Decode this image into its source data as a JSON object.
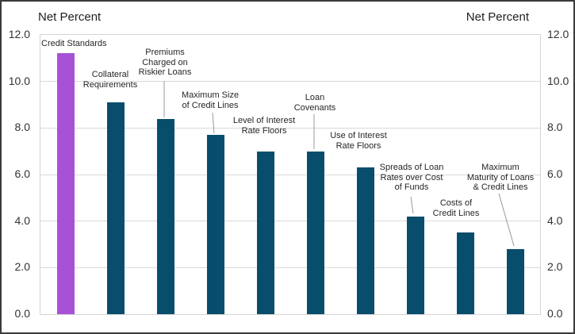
{
  "header": {
    "left_title": "Net Percent",
    "right_title": "Net Percent"
  },
  "chart_data": {
    "type": "bar",
    "title": "",
    "ylabel_left": "Net Percent",
    "ylabel_right": "Net Percent",
    "ylim": [
      0,
      12
    ],
    "ytick_step": 2,
    "ytick_labels": [
      "12.0",
      "10.0",
      "8.0",
      "6.0",
      "4.0",
      "2.0",
      "0.0"
    ],
    "grid": true,
    "legend": "none",
    "categories": [
      "Credit Standards",
      "Collateral Requirements",
      "Premiums Charged on Riskier Loans",
      "Maximum Size of Credit Lines",
      "Level of Interest Rate Floors",
      "Loan Covenants",
      "Use of Interest Rate Floors",
      "Spreads of Loan Rates over Cost of Funds",
      "Costs of Credit Lines",
      "Maximum Maturity of Loans & Credit Lines"
    ],
    "values": [
      11.2,
      9.1,
      8.4,
      7.7,
      7.0,
      7.0,
      6.3,
      4.2,
      3.5,
      2.8
    ],
    "highlight_index": 0,
    "colors": {
      "highlight_bar": "#A651D6",
      "default_bar": "#094D6C",
      "gridline": "#D9D9D9",
      "axis_text": "#333333",
      "title_text": "#1F1F1F",
      "leader_line": "#999999",
      "frame_border": "#3A3A3A"
    },
    "annotations": [
      {
        "text": "Credit Standards",
        "x": 50,
        "y": 47,
        "align": "left"
      },
      {
        "text": "Collateral\nRequirements",
        "x": 137,
        "y": 86,
        "align": "center"
      },
      {
        "text": "Premiums\nCharged on\nRiskier Loans",
        "x": 206,
        "y": 58,
        "align": "center",
        "leader": [
          205,
          100,
          205,
          146
        ]
      },
      {
        "text": "Maximum Size\nof Credit Lines",
        "x": 263,
        "y": 112,
        "align": "center",
        "leader": [
          266,
          140,
          268,
          166
        ]
      },
      {
        "text": "Level of Interest\nRate Floors",
        "x": 331,
        "y": 144,
        "align": "center"
      },
      {
        "text": "Loan\nCovenants",
        "x": 395,
        "y": 115,
        "align": "center",
        "leader": [
          394,
          142,
          394,
          186
        ]
      },
      {
        "text": "Use of Interest\nRate Floors",
        "x": 450,
        "y": 163,
        "align": "center"
      },
      {
        "text": "Spreads of Loan\nRates over Cost\nof Funds",
        "x": 517,
        "y": 203,
        "align": "center",
        "leader": [
          516,
          246,
          519,
          267
        ]
      },
      {
        "text": "Costs of\nCredit Lines",
        "x": 573,
        "y": 248,
        "align": "center"
      },
      {
        "text": "Maximum\nMaturity of Loans\n& Credit Lines",
        "x": 629,
        "y": 203,
        "align": "center",
        "leader": [
          627,
          242,
          646,
          308
        ]
      }
    ]
  }
}
